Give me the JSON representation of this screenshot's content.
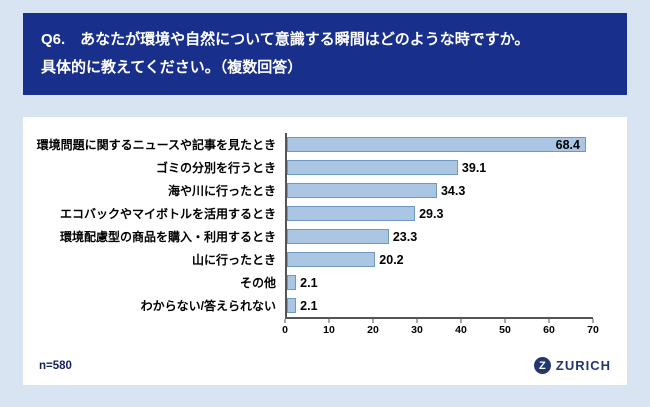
{
  "header": {
    "line1": "Q6.　あなたが環境や自然について意識する瞬間はどのような時ですか。",
    "line2": "具体的に教えてください。（複数回答）"
  },
  "chart_data": {
    "type": "bar",
    "orientation": "horizontal",
    "categories": [
      "環境問題に関するニュースや記事を見たとき",
      "ゴミの分別を行うとき",
      "海や川に行ったとき",
      "エコバックやマイボトルを活用するとき",
      "環境配慮型の商品を購入・利用するとき",
      "山に行ったとき",
      "その他",
      "わからない/答えられない"
    ],
    "values": [
      68.4,
      39.1,
      34.3,
      29.3,
      23.3,
      20.2,
      2.1,
      2.1
    ],
    "xlim": [
      0,
      70
    ],
    "xticks": [
      0,
      10,
      20,
      30,
      40,
      50,
      60,
      70
    ],
    "grid": false,
    "legend": false,
    "bar_color": "#aac6e2",
    "bar_border_color": "#6f99c2",
    "title": "",
    "xlabel": "",
    "ylabel": ""
  },
  "footer": {
    "sample_size": "n=580"
  },
  "logo": {
    "initial": "Z",
    "text": "ZURICH"
  },
  "colors": {
    "page_background": "#d8e4f2",
    "header_background": "#182f8b",
    "header_text": "#ffffff",
    "card_background": "#ffffff",
    "logo_blue": "#23366f"
  }
}
